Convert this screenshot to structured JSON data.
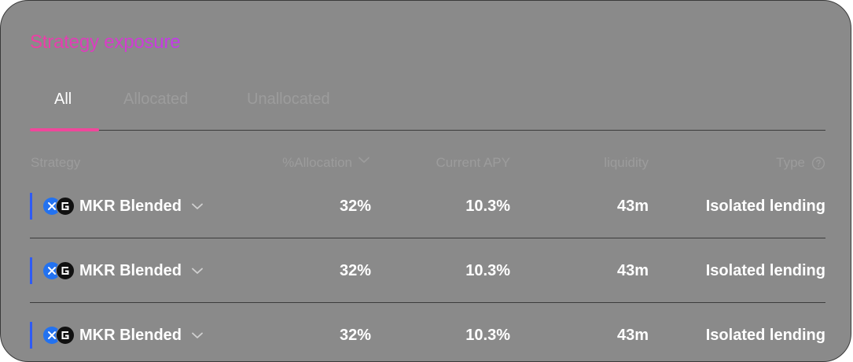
{
  "title": "Strategy exposure",
  "tabs": [
    {
      "label": "All",
      "active": true
    },
    {
      "label": "Allocated",
      "active": false
    },
    {
      "label": "Unallocated",
      "active": false
    }
  ],
  "columns": {
    "strategy": "Strategy",
    "allocation": "%Allocation",
    "apy": "Current APY",
    "liquidity": "liquidity",
    "type": "Type"
  },
  "icons": {
    "sort": "chevron-down-icon",
    "help": "question-circle-icon",
    "expand": "chevron-down-icon",
    "token_a": "cross-token-icon",
    "token_b": "g-token-icon"
  },
  "colors": {
    "title_gradient_start": "#f03da2",
    "title_gradient_end": "#c13bea",
    "tab_indicator": "#f0479b",
    "row_accent": "#2f5bf5",
    "card_bg": "#8a8a8a"
  },
  "rows": [
    {
      "name": "MKR Blended",
      "allocation": "32%",
      "apy": "10.3%",
      "liquidity": "43m",
      "type": "Isolated lending"
    },
    {
      "name": "MKR Blended",
      "allocation": "32%",
      "apy": "10.3%",
      "liquidity": "43m",
      "type": "Isolated lending"
    },
    {
      "name": "MKR Blended",
      "allocation": "32%",
      "apy": "10.3%",
      "liquidity": "43m",
      "type": "Isolated lending"
    }
  ]
}
